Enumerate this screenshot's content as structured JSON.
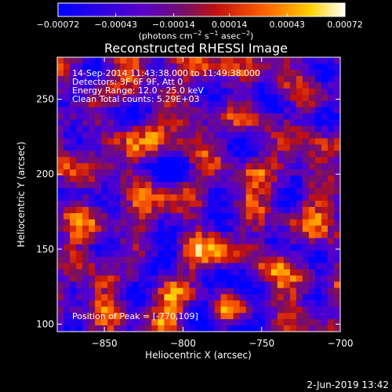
{
  "footer": {
    "date": "2-Jun-2019 13:42"
  },
  "chart_data": {
    "type": "heatmap",
    "title": "Reconstructed RHESSI Image",
    "xlabel": "Heliocentric X (arcsec)",
    "ylabel": "Heliocentric Y (arcsec)",
    "xlim": [
      -880,
      -700
    ],
    "ylim": [
      95,
      278
    ],
    "xticks": [
      -850,
      -800,
      -750,
      -700
    ],
    "xtick_labels": [
      "-850",
      "-800",
      "-750",
      "-700"
    ],
    "yticks": [
      100,
      150,
      200,
      250
    ],
    "ytick_labels": [
      "100",
      "150",
      "200",
      "250"
    ],
    "colorbar": {
      "range": [
        -0.00072,
        0.00072
      ],
      "ticks": [
        -0.00072,
        -0.00043,
        -0.00014,
        0.00014,
        0.00043,
        0.00072
      ],
      "tick_labels": [
        "-0.00072",
        "-0.00043",
        "-0.00014",
        "0.00014",
        "0.00043",
        "0.00072"
      ],
      "colormap": [
        "#0000ff",
        "#5a00c8",
        "#7a1060",
        "#c01010",
        "#ff6000",
        "#ffd000",
        "#ffffff"
      ],
      "units": "(photons cm-2 s-1 asec-2)"
    },
    "annotations": {
      "time_range": "14-Sep-2014 11:43:38.000 to 11:49:38.000",
      "detectors": "Detectors: 3F 6F 9F, Att 0",
      "energy_range": "Energy Range: 12.0 - 25.0 keV",
      "counts": "Clean    Total counts: 5.29E+03",
      "peak": "Position of Peak = [-770,109]"
    },
    "peak_position": [
      -770,
      109
    ],
    "image_grid": {
      "nx": 45,
      "ny": 44,
      "pixel_arcsec": 4
    }
  }
}
